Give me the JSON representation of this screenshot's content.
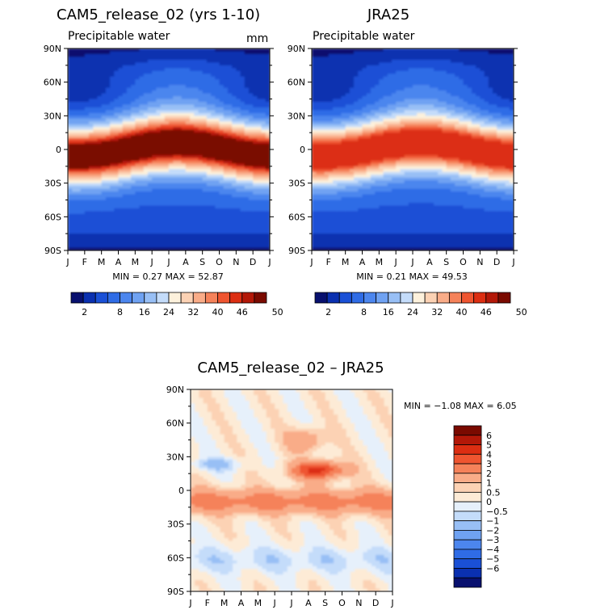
{
  "chart_data": [
    {
      "type": "heatmap",
      "title": "CAM5_release_02 (yrs 1-10)",
      "subtitle": "Precipitable water",
      "units": "mm",
      "x_ticks": [
        "J",
        "F",
        "M",
        "A",
        "M",
        "J",
        "J",
        "A",
        "S",
        "O",
        "N",
        "D",
        "J"
      ],
      "y_ticks": [
        "90N",
        "60N",
        "30N",
        "0",
        "30S",
        "60S",
        "90S"
      ],
      "ylim": [
        -90,
        90
      ],
      "stats_text": "MIN =    0.27  MAX =   52.87",
      "min": 0.27,
      "max": 52.87,
      "colorbar_labels": [
        "2",
        "8",
        "16",
        "24",
        "32",
        "40",
        "46",
        "50"
      ],
      "colorbar_colors": [
        "#08106e",
        "#0a30b0",
        "#1a50d6",
        "#2f6ce6",
        "#4c86ee",
        "#6fa2f2",
        "#98bff5",
        "#c4dcfa",
        "#fdf1dc",
        "#fcd2b4",
        "#f9ac88",
        "#f5825a",
        "#ef5530",
        "#dc2e12",
        "#b31808",
        "#7a0a00"
      ],
      "max_color_index": 15
    },
    {
      "type": "heatmap",
      "title": "JRA25",
      "subtitle": "Precipitable water",
      "x_ticks": [
        "J",
        "F",
        "M",
        "A",
        "M",
        "J",
        "J",
        "A",
        "S",
        "O",
        "N",
        "D",
        "J"
      ],
      "y_ticks": [
        "90N",
        "60N",
        "30N",
        "0",
        "30S",
        "60S",
        "90S"
      ],
      "ylim": [
        -90,
        90
      ],
      "stats_text": "MIN =    0.21  MAX =   49.53",
      "min": 0.21,
      "max": 49.53,
      "colorbar_labels": [
        "2",
        "8",
        "16",
        "24",
        "32",
        "40",
        "46",
        "50"
      ],
      "colorbar_colors": [
        "#08106e",
        "#0a30b0",
        "#1a50d6",
        "#2f6ce6",
        "#4c86ee",
        "#6fa2f2",
        "#98bff5",
        "#c4dcfa",
        "#fdf1dc",
        "#fcd2b4",
        "#f9ac88",
        "#f5825a",
        "#ef5530",
        "#dc2e12",
        "#b31808",
        "#7a0a00"
      ],
      "max_color_index": 13
    },
    {
      "type": "heatmap",
      "title": "CAM5_release_02 – JRA25",
      "x_ticks": [
        "J",
        "F",
        "M",
        "A",
        "M",
        "J",
        "J",
        "A",
        "S",
        "O",
        "N",
        "D",
        "J"
      ],
      "y_ticks": [
        "90N",
        "60N",
        "30N",
        "0",
        "30S",
        "60S",
        "90S"
      ],
      "ylim": [
        -90,
        90
      ],
      "stats_text": "MIN =   −1.08  MAX =    6.05",
      "min": -1.08,
      "max": 6.05,
      "colorbar_labels": [
        "6",
        "5",
        "4",
        "3",
        "2",
        "1",
        "0.5",
        "0",
        "−0.5",
        "−1",
        "−2",
        "−3",
        "−4",
        "−5",
        "−6"
      ],
      "colorbar_colors": [
        "#7a0a00",
        "#b31808",
        "#dc2e12",
        "#ef5530",
        "#f5825a",
        "#f9ac88",
        "#fcd2b4",
        "#fdebd6",
        "#e6f0fb",
        "#c4dcfa",
        "#98bff5",
        "#6fa2f2",
        "#4c86ee",
        "#2f6ce6",
        "#1a50d6",
        "#0a30b0",
        "#08106e"
      ]
    }
  ]
}
